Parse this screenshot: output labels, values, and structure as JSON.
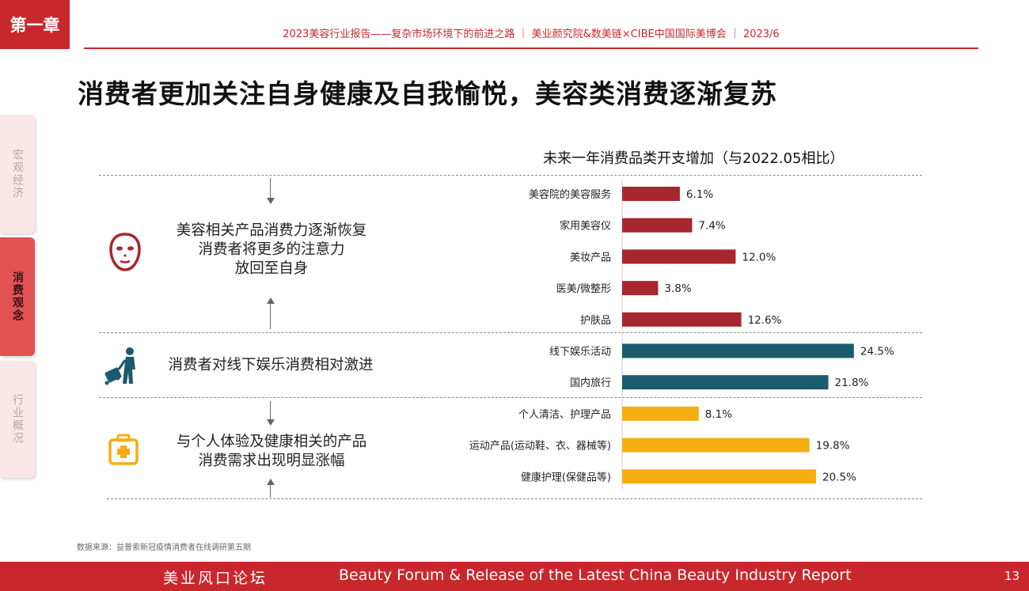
{
  "chapter": "第一章",
  "header": "2023美容行业报告——复杂市场环境下的前进之路 ｜ 美业颜究院&数美链×CIBE中国国际美博会 ｜ 2023/6",
  "title": "消费者更加关注自身健康及自我愉悦，美容类消费逐渐复苏",
  "side_tabs": [
    "宏观经济",
    "消费观念",
    "行业概况"
  ],
  "sections": [
    {
      "text": "美容相关产品消费力逐渐恢复\n消费者将更多的注意力\n放回至自身",
      "icon": "face-mask-icon"
    },
    {
      "text": "消费者对线下娱乐消费相对激进",
      "icon": "traveler-luggage-icon"
    },
    {
      "text": "与个人体验及健康相关的产品\n消费需求出现明显涨幅",
      "icon": "medical-kit-icon"
    }
  ],
  "colors": {
    "beauty": "#a8262d",
    "leisure": "#1c5a6e",
    "health": "#f6ad13",
    "brand": "#c8282d"
  },
  "chart_data": {
    "type": "bar",
    "orientation": "horizontal",
    "title": "未来一年消费品类开支增加（与2022.05相比）",
    "categories": [
      "美容院的美容服务",
      "家用美容仪",
      "美妆产品",
      "医美/微整形",
      "护肤品",
      "线下娱乐活动",
      "国内旅行",
      "个人清洁、护理产品",
      "运动产品(运动鞋、衣、器械等)",
      "健康护理(保健品等)"
    ],
    "values": [
      6.1,
      7.4,
      12.0,
      3.8,
      12.6,
      24.5,
      21.8,
      8.1,
      19.8,
      20.5
    ],
    "value_labels": [
      "6.1%",
      "7.4%",
      "12.0%",
      "3.8%",
      "12.6%",
      "24.5%",
      "21.8%",
      "8.1%",
      "19.8%",
      "20.5%"
    ],
    "groups": [
      "beauty",
      "beauty",
      "beauty",
      "beauty",
      "beauty",
      "leisure",
      "leisure",
      "health",
      "health",
      "health"
    ]
  },
  "source": "数据来源：益普索新冠疫情消费者在线调研第五期",
  "footer": {
    "left": "美业风口论坛",
    "center": "Beauty Forum & Release of the Latest China Beauty Industry Report",
    "page": "13"
  }
}
